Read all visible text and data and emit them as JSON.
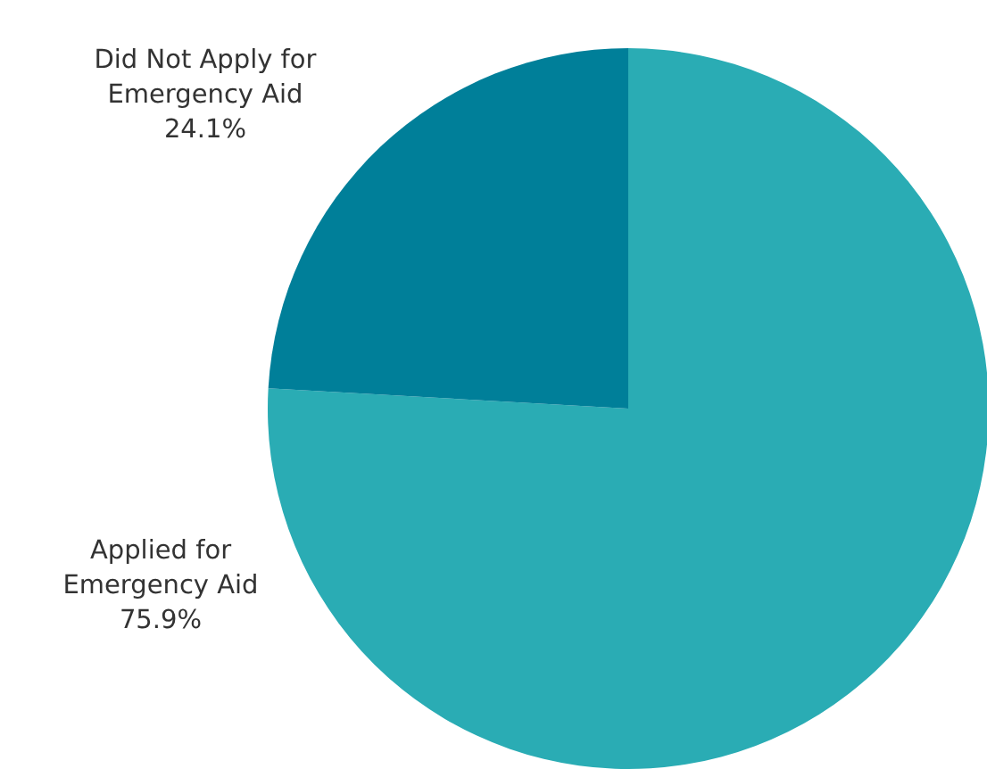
{
  "chart_data": {
    "type": "pie",
    "categories": [
      "Applied for Emergency Aid",
      "Did Not Apply for Emergency Aid"
    ],
    "values": [
      75.9,
      24.1
    ],
    "colors": [
      "#2aacb4",
      "#007f99"
    ],
    "value_labels": [
      "75.9%",
      "24.1%"
    ]
  }
}
